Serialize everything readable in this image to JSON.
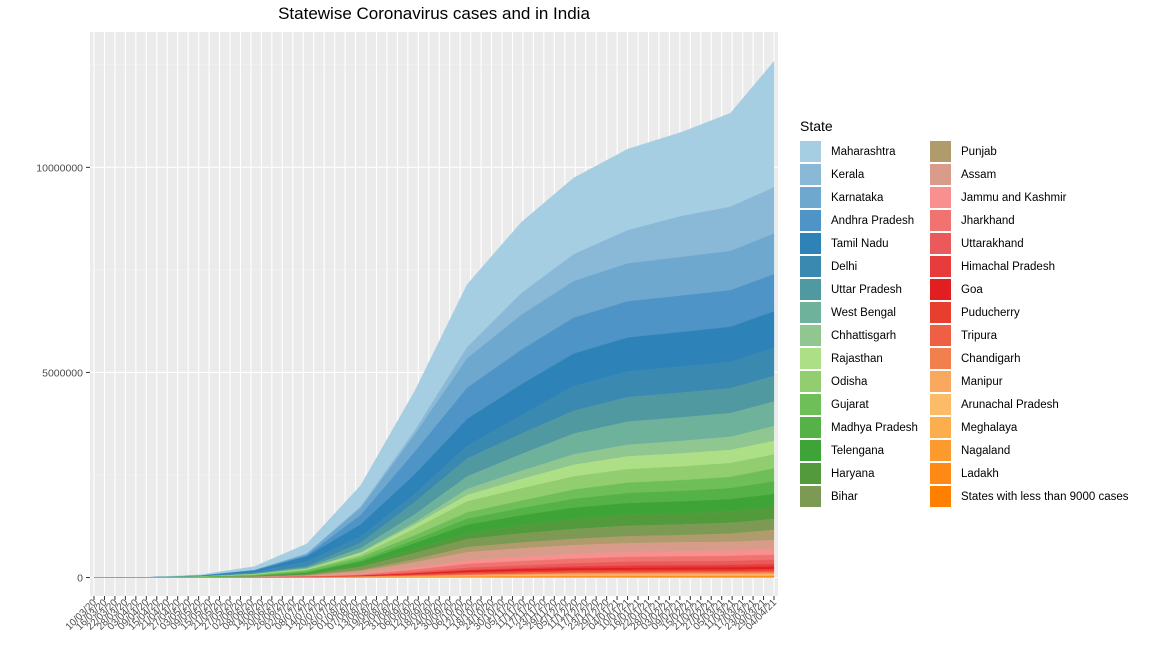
{
  "chart_data": {
    "type": "area",
    "stacked": true,
    "title": "Statewise Coronavirus cases and in India",
    "xlabel": "",
    "ylabel": "",
    "legend_title": "State",
    "legend_position": "right",
    "grid": true,
    "ylim": [
      -450000,
      13300000
    ],
    "y_ticks": [
      0,
      5000000,
      10000000
    ],
    "y_tick_labels": [
      "0",
      "5000000",
      "10000000"
    ],
    "x_tick_labels": [
      "10/03/20",
      "16/03/20",
      "22/03/20",
      "28/03/20",
      "03/04/20",
      "09/04/20",
      "15/04/20",
      "21/04/20",
      "27/04/20",
      "03/05/20",
      "09/05/20",
      "15/05/20",
      "21/05/20",
      "27/05/20",
      "02/06/20",
      "08/06/20",
      "14/06/20",
      "20/06/20",
      "26/06/20",
      "02/07/20",
      "08/07/20",
      "14/07/20",
      "20/07/20",
      "26/07/20",
      "01/08/20",
      "07/08/20",
      "13/08/20",
      "19/08/20",
      "25/08/20",
      "31/08/20",
      "06/09/20",
      "12/09/20",
      "18/09/20",
      "24/09/20",
      "30/09/20",
      "06/10/20",
      "12/10/20",
      "18/10/20",
      "24/10/20",
      "30/10/20",
      "05/11/20",
      "11/11/20",
      "17/11/20",
      "23/11/20",
      "29/11/20",
      "05/12/20",
      "11/12/20",
      "17/12/20",
      "23/12/20",
      "29/12/20",
      "04/01/21",
      "10/01/21",
      "16/01/21",
      "22/01/21",
      "28/01/21",
      "03/02/21",
      "09/02/21",
      "15/02/21",
      "21/02/21",
      "27/02/21",
      "05/03/21",
      "11/03/21",
      "17/03/21",
      "23/03/21",
      "29/03/21",
      "04/04/21"
    ],
    "x": [
      "10/03/20",
      "10/04/20",
      "10/05/20",
      "10/06/20",
      "10/07/20",
      "10/08/20",
      "10/09/20",
      "10/10/20",
      "10/11/20",
      "10/12/20",
      "10/01/21",
      "10/02/21",
      "10/03/21",
      "04/04/21"
    ],
    "series": [
      {
        "name": "Maharashtra",
        "color": "#a6cee3",
        "values": [
          0,
          1300,
          22000,
          88000,
          239000,
          515000,
          967000,
          1527000,
          1731000,
          1862000,
          1978000,
          2047000,
          2282000,
          3072000
        ]
      },
      {
        "name": "Kerala",
        "color": "#8ab9d8",
        "values": [
          0,
          350,
          500,
          2000,
          6900,
          32000,
          99000,
          276000,
          527000,
          655000,
          810000,
          997000,
          1080000,
          1130000
        ]
      },
      {
        "name": "Karnataka",
        "color": "#6ea8cf",
        "values": [
          0,
          200,
          800,
          6000,
          36000,
          179000,
          421000,
          717000,
          853000,
          894000,
          924000,
          943000,
          956000,
          992000
        ]
      },
      {
        "name": "Andhra Pradesh",
        "color": "#4e94c7",
        "values": [
          0,
          350,
          1900,
          4700,
          25000,
          227000,
          547000,
          760000,
          844000,
          873000,
          884000,
          888000,
          891000,
          905000
        ]
      },
      {
        "name": "Tamil Nadu",
        "color": "#2d82b8",
        "values": [
          0,
          900,
          7200,
          36000,
          130000,
          303000,
          480000,
          662000,
          753000,
          797000,
          826000,
          843000,
          857000,
          882000
        ]
      },
      {
        "name": "Delhi",
        "color": "#3a89b0",
        "values": [
          0,
          900,
          6900,
          32000,
          110000,
          147000,
          201000,
          306000,
          448000,
          599000,
          628000,
          636000,
          643000,
          691000
        ]
      },
      {
        "name": "Uttar Pradesh",
        "color": "#5199a1",
        "values": [
          0,
          430,
          3500,
          11000,
          33000,
          131000,
          299000,
          436000,
          497000,
          556000,
          596000,
          603000,
          605000,
          626000
        ]
      },
      {
        "name": "West Bengal",
        "color": "#6fb29c",
        "values": [
          0,
          120,
          1900,
          9300,
          27000,
          102000,
          199000,
          306000,
          410000,
          505000,
          565000,
          572000,
          579000,
          595000
        ]
      },
      {
        "name": "Chhattisgarh",
        "color": "#90c68f",
        "values": [
          0,
          20,
          60,
          1200,
          3800,
          12000,
          54000,
          146000,
          202000,
          254000,
          282000,
          305000,
          318000,
          364000
        ]
      },
      {
        "name": "Rajasthan",
        "color": "#addf87",
        "values": [
          0,
          550,
          3800,
          12000,
          23000,
          55000,
          96000,
          154000,
          224000,
          283000,
          311000,
          318000,
          322000,
          329000
        ]
      },
      {
        "name": "Odisha",
        "color": "#92cd70",
        "values": [
          0,
          50,
          340,
          3300,
          12000,
          52000,
          161000,
          269000,
          300000,
          320000,
          330000,
          334000,
          336000,
          339000
        ]
      },
      {
        "name": "Gujarat",
        "color": "#6fbf58",
        "values": [
          0,
          300,
          8500,
          22000,
          39000,
          72000,
          109000,
          154000,
          179000,
          226000,
          253000,
          262000,
          275000,
          318000
        ]
      },
      {
        "name": "Madhya Pradesh",
        "color": "#55b246",
        "values": [
          0,
          450,
          3600,
          10000,
          17000,
          40000,
          82000,
          146000,
          176000,
          215000,
          245000,
          255000,
          268000,
          306000
        ]
      },
      {
        "name": "Telengana",
        "color": "#3ea438",
        "values": [
          0,
          480,
          1200,
          4100,
          32000,
          80000,
          152000,
          214000,
          254000,
          277000,
          289000,
          296000,
          301000,
          311000
        ]
      },
      {
        "name": "Haryana",
        "color": "#529a3c",
        "values": [
          0,
          170,
          800,
          5500,
          20000,
          43000,
          88000,
          137000,
          188000,
          244000,
          263000,
          268000,
          275000,
          300000
        ]
      },
      {
        "name": "Bihar",
        "color": "#7d9a54",
        "values": [
          0,
          60,
          750,
          5500,
          15000,
          82000,
          157000,
          197000,
          222000,
          241000,
          256000,
          261000,
          264000,
          266000
        ]
      },
      {
        "name": "Punjab",
        "color": "#b09b6d",
        "values": [
          0,
          150,
          1800,
          2800,
          6900,
          25000,
          70000,
          124000,
          140000,
          154000,
          168000,
          174000,
          199000,
          248000
        ]
      },
      {
        "name": "Assam",
        "color": "#d99c8a",
        "values": [
          0,
          30,
          65,
          3500,
          17000,
          59000,
          137000,
          202000,
          211000,
          214000,
          216000,
          217000,
          218000,
          219000
        ]
      },
      {
        "name": "Jammu and Kashmir",
        "color": "#f7908e",
        "values": [
          0,
          200,
          850,
          4600,
          9500,
          25000,
          44000,
          82000,
          102000,
          113000,
          119000,
          124000,
          127000,
          136000
        ]
      },
      {
        "name": "Jharkhand",
        "color": "#f07370",
        "values": [
          0,
          15,
          160,
          1300,
          3100,
          17000,
          55000,
          93000,
          104000,
          111000,
          117000,
          119000,
          121000,
          125000
        ]
      },
      {
        "name": "Uttarakhand",
        "color": "#eb5a5a",
        "values": [
          0,
          40,
          70,
          1500,
          3500,
          9000,
          28000,
          53000,
          66000,
          80000,
          93000,
          96000,
          97000,
          104000
        ]
      },
      {
        "name": "Himachal Pradesh",
        "color": "#e83c3c",
        "values": [
          0,
          20,
          50,
          450,
          1100,
          3000,
          8300,
          17000,
          26000,
          42000,
          56000,
          58000,
          59000,
          64000
        ]
      },
      {
        "name": "Goa",
        "color": "#e21f20",
        "values": [
          0,
          10,
          15,
          400,
          2200,
          9500,
          22000,
          38000,
          45000,
          49000,
          51000,
          54000,
          55000,
          58000
        ]
      },
      {
        "name": "Puducherry",
        "color": "#e83e30",
        "values": [
          0,
          5,
          15,
          150,
          1300,
          6000,
          19000,
          32000,
          36000,
          37000,
          38000,
          39000,
          40000,
          43000
        ]
      },
      {
        "name": "Tripura",
        "color": "#ee5f44",
        "values": [
          0,
          5,
          100,
          900,
          1900,
          6500,
          18000,
          29000,
          32000,
          33000,
          33000,
          33000,
          33000,
          34000
        ]
      },
      {
        "name": "Chandigarh",
        "color": "#f2804f",
        "values": [
          0,
          20,
          170,
          320,
          600,
          1500,
          6000,
          13000,
          15000,
          18000,
          20000,
          21000,
          23000,
          30000
        ]
      },
      {
        "name": "Manipur",
        "color": "#f9a95f",
        "values": [
          0,
          2,
          2,
          350,
          1500,
          3800,
          8000,
          14000,
          20000,
          26000,
          28000,
          29000,
          29000,
          29000
        ]
      },
      {
        "name": "Arunachal Pradesh",
        "color": "#fbbb69",
        "values": [
          0,
          1,
          1,
          60,
          400,
          1900,
          6000,
          13000,
          15000,
          16000,
          16500,
          16800,
          16800,
          16900
        ]
      },
      {
        "name": "Meghalaya",
        "color": "#fdae4c",
        "values": [
          0,
          5,
          15,
          40,
          300,
          1000,
          3500,
          7000,
          10000,
          13000,
          13500,
          13900,
          14000,
          14200
        ]
      },
      {
        "name": "Nagaland",
        "color": "#fd9a2e",
        "values": [
          0,
          1,
          1,
          150,
          700,
          3000,
          5000,
          7000,
          10000,
          11000,
          11900,
          12100,
          12200,
          12400
        ]
      },
      {
        "name": "Ladakh",
        "color": "#fe8a15",
        "values": [
          0,
          15,
          40,
          120,
          1000,
          1700,
          3000,
          4900,
          6800,
          9000,
          9600,
          9800,
          10000,
          10700
        ]
      },
      {
        "name": "States with less than 9000 cases",
        "color": "#ff7f00",
        "values": [
          0,
          30,
          200,
          800,
          2000,
          4500,
          8000,
          10000,
          13000,
          14000,
          14500,
          14700,
          14900,
          15500
        ]
      }
    ]
  }
}
